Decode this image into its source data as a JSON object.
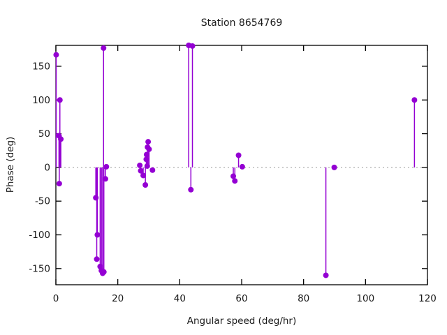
{
  "window": {
    "background": "#ffffff"
  },
  "chart_data": {
    "type": "scatter",
    "plot_style": "impulses+points",
    "title": "Station 8654769",
    "xlabel": "Angular speed (deg/hr)",
    "ylabel": "Phase (deg)",
    "xlim": [
      0,
      120
    ],
    "ylim": [
      -174,
      181
    ],
    "xticks": [
      0,
      20,
      40,
      60,
      80,
      100,
      120
    ],
    "yticks": [
      -150,
      -100,
      -50,
      0,
      50,
      100,
      150
    ],
    "grid": false,
    "legend_position": "none",
    "zero_line_y": 0,
    "point_color": "#9400d3",
    "axis_color": "#000000",
    "zero_line_color": "#9a9a9a",
    "text_color": "#1a1a1a",
    "series": [
      {
        "name": "phase",
        "points": [
          [
            0.1,
            167
          ],
          [
            1.0,
            47
          ],
          [
            1.1,
            -24
          ],
          [
            1.3,
            100
          ],
          [
            1.6,
            42
          ],
          [
            12.9,
            -45
          ],
          [
            13.2,
            -136
          ],
          [
            13.4,
            -100
          ],
          [
            14.3,
            -147
          ],
          [
            14.7,
            -153
          ],
          [
            15.1,
            -157
          ],
          [
            15.4,
            177
          ],
          [
            15.5,
            -155
          ],
          [
            16.0,
            -17
          ],
          [
            16.3,
            1
          ],
          [
            27.1,
            3
          ],
          [
            27.4,
            -5
          ],
          [
            28.2,
            -12
          ],
          [
            28.9,
            -26
          ],
          [
            29.2,
            12
          ],
          [
            29.3,
            19
          ],
          [
            29.5,
            2
          ],
          [
            29.6,
            30
          ],
          [
            29.8,
            38
          ],
          [
            30.1,
            27
          ],
          [
            31.2,
            -4
          ],
          [
            42.9,
            181
          ],
          [
            43.6,
            -33
          ],
          [
            44.1,
            180
          ],
          [
            57.3,
            -13
          ],
          [
            57.8,
            -20
          ],
          [
            59.0,
            18
          ],
          [
            60.2,
            1
          ],
          [
            87.2,
            -160
          ],
          [
            89.9,
            0
          ],
          [
            115.8,
            100
          ]
        ]
      }
    ]
  }
}
